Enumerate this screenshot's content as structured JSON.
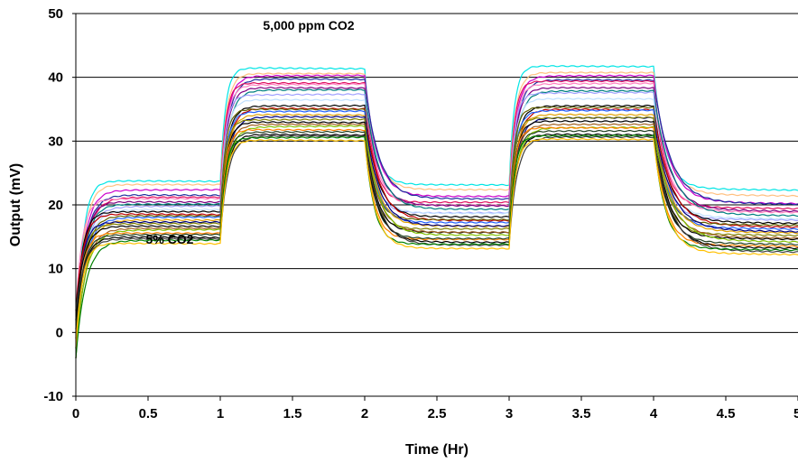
{
  "chart_data": {
    "type": "line",
    "title": "",
    "xlabel": "Time (Hr)",
    "ylabel": "Output (mV)",
    "xlim": [
      0,
      5
    ],
    "ylim": [
      -10,
      50
    ],
    "x_ticks": [
      "0",
      "0.5",
      "1",
      "1.5",
      "2",
      "2.5",
      "3",
      "3.5",
      "4",
      "4.5",
      "5"
    ],
    "y_ticks": [
      "-10",
      "0",
      "10",
      "20",
      "30",
      "40",
      "50"
    ],
    "grid": "horizontal",
    "legend": "none",
    "annotations": [
      {
        "text": "5,000 ppm CO2",
        "x": 1.95,
        "y": 43
      },
      {
        "text": "5% CO2",
        "x": 0.55,
        "y": 14.5
      }
    ],
    "phases": [
      {
        "gas": "5% CO2",
        "x": [
          0,
          1
        ]
      },
      {
        "gas": "5,000 ppm CO2",
        "x": [
          1,
          2
        ]
      },
      {
        "gas": "5% CO2",
        "x": [
          2,
          3
        ]
      },
      {
        "gas": "5,000 ppm CO2",
        "x": [
          3,
          4
        ]
      },
      {
        "gas": "5% CO2",
        "x": [
          4,
          5
        ]
      }
    ],
    "series": [
      {
        "color": "#00e5e5",
        "low": 23.8,
        "high": 41.5
      },
      {
        "color": "#ffc080",
        "low": 23.2,
        "high": 40.6
      },
      {
        "color": "#cc00cc",
        "low": 22.3,
        "high": 40.2
      },
      {
        "color": "#1f2f9f",
        "low": 21.6,
        "high": 39.8
      },
      {
        "color": "#e01060",
        "low": 21.2,
        "high": 39.1
      },
      {
        "color": "#ff80c0",
        "low": 20.9,
        "high": 38.8
      },
      {
        "color": "#800080",
        "low": 20.5,
        "high": 38.4
      },
      {
        "color": "#008080",
        "low": 20.1,
        "high": 38.0
      },
      {
        "color": "#a0a0ff",
        "low": 19.7,
        "high": 37.2
      },
      {
        "color": "#c0e0ff",
        "low": 19.3,
        "high": 36.5
      },
      {
        "color": "#000000",
        "low": 18.9,
        "high": 35.5
      },
      {
        "color": "#c00000",
        "low": 18.6,
        "high": 35.2
      },
      {
        "color": "#606000",
        "low": 18.3,
        "high": 35.0
      },
      {
        "color": "#2060ff",
        "low": 18.0,
        "high": 34.6
      },
      {
        "color": "#e0a000",
        "low": 17.7,
        "high": 34.2
      },
      {
        "color": "#000080",
        "low": 17.3,
        "high": 33.8
      },
      {
        "color": "#808000",
        "low": 17.0,
        "high": 33.3
      },
      {
        "color": "#000000",
        "low": 16.7,
        "high": 33.0
      },
      {
        "color": "#a06020",
        "low": 16.3,
        "high": 32.6
      },
      {
        "color": "#80c000",
        "low": 16.0,
        "high": 32.2
      },
      {
        "color": "#ff8000",
        "low": 15.6,
        "high": 31.8
      },
      {
        "color": "#204020",
        "low": 15.3,
        "high": 31.4
      },
      {
        "color": "#000000",
        "low": 15.0,
        "high": 31.1
      },
      {
        "color": "#404040",
        "low": 14.7,
        "high": 30.8
      },
      {
        "color": "#008000",
        "low": 14.4,
        "high": 30.5
      },
      {
        "color": "#ffc000",
        "low": 14.0,
        "high": 30.2
      }
    ]
  }
}
